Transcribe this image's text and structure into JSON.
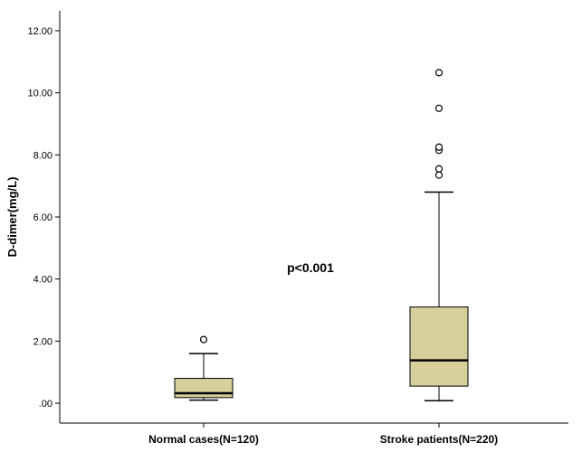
{
  "chart_data": {
    "type": "boxplot",
    "ylabel": "D-dimer(mg/L)",
    "ylim": [
      -0.6,
      12.6
    ],
    "yticks": [
      ".00",
      "2.00",
      "4.00",
      "6.00",
      "8.00",
      "10.00",
      "12.00"
    ],
    "ytick_values": [
      0,
      2,
      4,
      6,
      8,
      10,
      12
    ],
    "grid": false,
    "box_color": "#d6cf9c",
    "categories": [
      "Normal cases(N=120)",
      "Stroke patients(N=220)"
    ],
    "boxes": [
      {
        "category": "Normal cases(N=120)",
        "whisker_low": 0.1,
        "q1": 0.18,
        "median": 0.32,
        "q3": 0.8,
        "whisker_high": 1.6,
        "outliers": [
          2.05
        ]
      },
      {
        "category": "Stroke patients(N=220)",
        "whisker_low": 0.08,
        "q1": 0.55,
        "median": 1.38,
        "q3": 3.1,
        "whisker_high": 6.8,
        "outliers": [
          7.35,
          7.55,
          8.15,
          8.25,
          9.5,
          10.65
        ]
      }
    ],
    "annotations": [
      "p<0.001"
    ]
  }
}
